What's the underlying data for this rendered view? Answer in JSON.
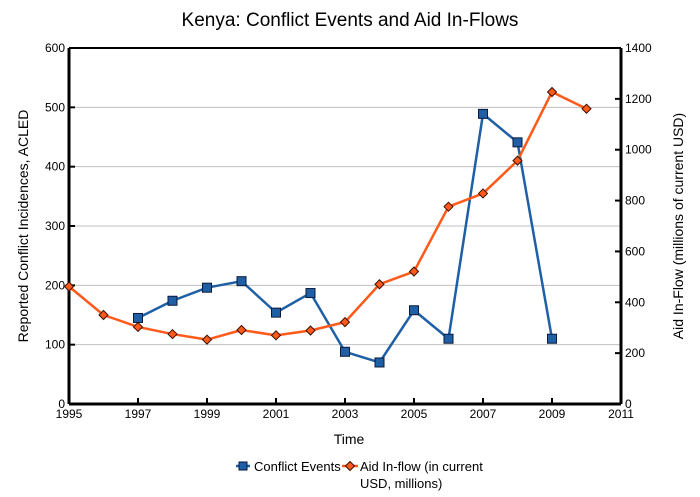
{
  "chart_data": {
    "type": "line",
    "title": "Kenya: Conflict Events and Aid In-Flows",
    "xlabel": "Time",
    "ylabel_left": "Reported Conflict Incidences, ACLED",
    "ylabel_right": "Aid In-Flow (millions of current USD)",
    "xlim": [
      1995,
      2011
    ],
    "ylim_left": [
      0,
      600
    ],
    "ylim_right": [
      0,
      1400
    ],
    "x_ticks": [
      "1995",
      "1997",
      "1999",
      "2001",
      "2003",
      "2005",
      "2007",
      "2009",
      "2011"
    ],
    "y_ticks_left": [
      "0",
      "100",
      "200",
      "300",
      "400",
      "500",
      "600"
    ],
    "y_ticks_right": [
      "0",
      "200",
      "400",
      "600",
      "800",
      "1000",
      "1200",
      "1400"
    ],
    "grid": "horizontal",
    "legend_position": "bottom",
    "series": [
      {
        "name": "Conflict Events",
        "axis": "left",
        "color": "#1f5fa6",
        "marker": "square",
        "x": [
          1997,
          1998,
          1999,
          2000,
          2001,
          2002,
          2003,
          2004,
          2005,
          2006,
          2007,
          2008,
          2009
        ],
        "values": [
          145,
          174,
          196,
          207,
          154,
          187,
          88,
          70,
          158,
          110,
          489,
          441,
          110
        ]
      },
      {
        "name": "Aid In-flow (in current USD, millions)",
        "legend_lines": [
          "Aid In-flow (in current",
          "USD, millions)"
        ],
        "axis": "right",
        "color": "#ff5a1a",
        "marker": "diamond",
        "x": [
          1995,
          1996,
          1997,
          1998,
          1999,
          2000,
          2001,
          2002,
          2003,
          2004,
          2005,
          2006,
          2007,
          2008,
          2009,
          2010
        ],
        "values": [
          462,
          350,
          303,
          275,
          253,
          291,
          270,
          289,
          322,
          471,
          521,
          776,
          828,
          957,
          1227,
          1161
        ]
      }
    ]
  }
}
